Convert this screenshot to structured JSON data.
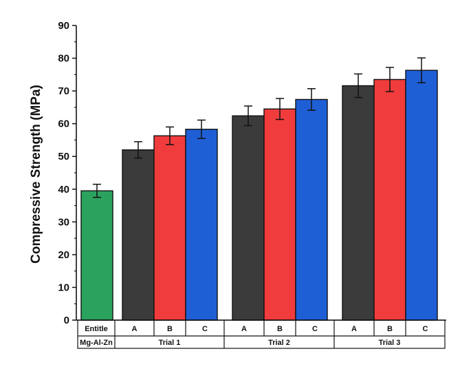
{
  "chart_data": {
    "type": "bar",
    "ylabel": "Compressive Strength (MPa)",
    "ylim": [
      0,
      90
    ],
    "yticks": [
      0,
      10,
      20,
      30,
      40,
      50,
      60,
      70,
      80,
      90
    ],
    "grid": false,
    "legend": "none",
    "bars": [
      {
        "category": "Entitle",
        "group": "Mg-Al-Zn",
        "value": 39.5,
        "error": 2.0,
        "color": "#2ca25f"
      },
      {
        "category": "A",
        "group": "Trial 1",
        "value": 52.0,
        "error": 2.5,
        "color": "#3b3b3b"
      },
      {
        "category": "B",
        "group": "Trial 1",
        "value": 56.3,
        "error": 2.7,
        "color": "#f03c3c"
      },
      {
        "category": "C",
        "group": "Trial 1",
        "value": 58.3,
        "error": 2.8,
        "color": "#1f5fd6"
      },
      {
        "category": "A",
        "group": "Trial 2",
        "value": 62.4,
        "error": 3.0,
        "color": "#3b3b3b"
      },
      {
        "category": "B",
        "group": "Trial 2",
        "value": 64.5,
        "error": 3.2,
        "color": "#f03c3c"
      },
      {
        "category": "C",
        "group": "Trial 2",
        "value": 67.4,
        "error": 3.3,
        "color": "#1f5fd6"
      },
      {
        "category": "A",
        "group": "Trial 3",
        "value": 71.6,
        "error": 3.6,
        "color": "#3b3b3b"
      },
      {
        "category": "B",
        "group": "Trial 3",
        "value": 73.5,
        "error": 3.7,
        "color": "#f03c3c"
      },
      {
        "category": "C",
        "group": "Trial 3",
        "value": 76.3,
        "error": 3.8,
        "color": "#1f5fd6"
      }
    ],
    "groups": [
      "Mg-Al-Zn",
      "Trial 1",
      "Trial 2",
      "Trial 3"
    ]
  }
}
